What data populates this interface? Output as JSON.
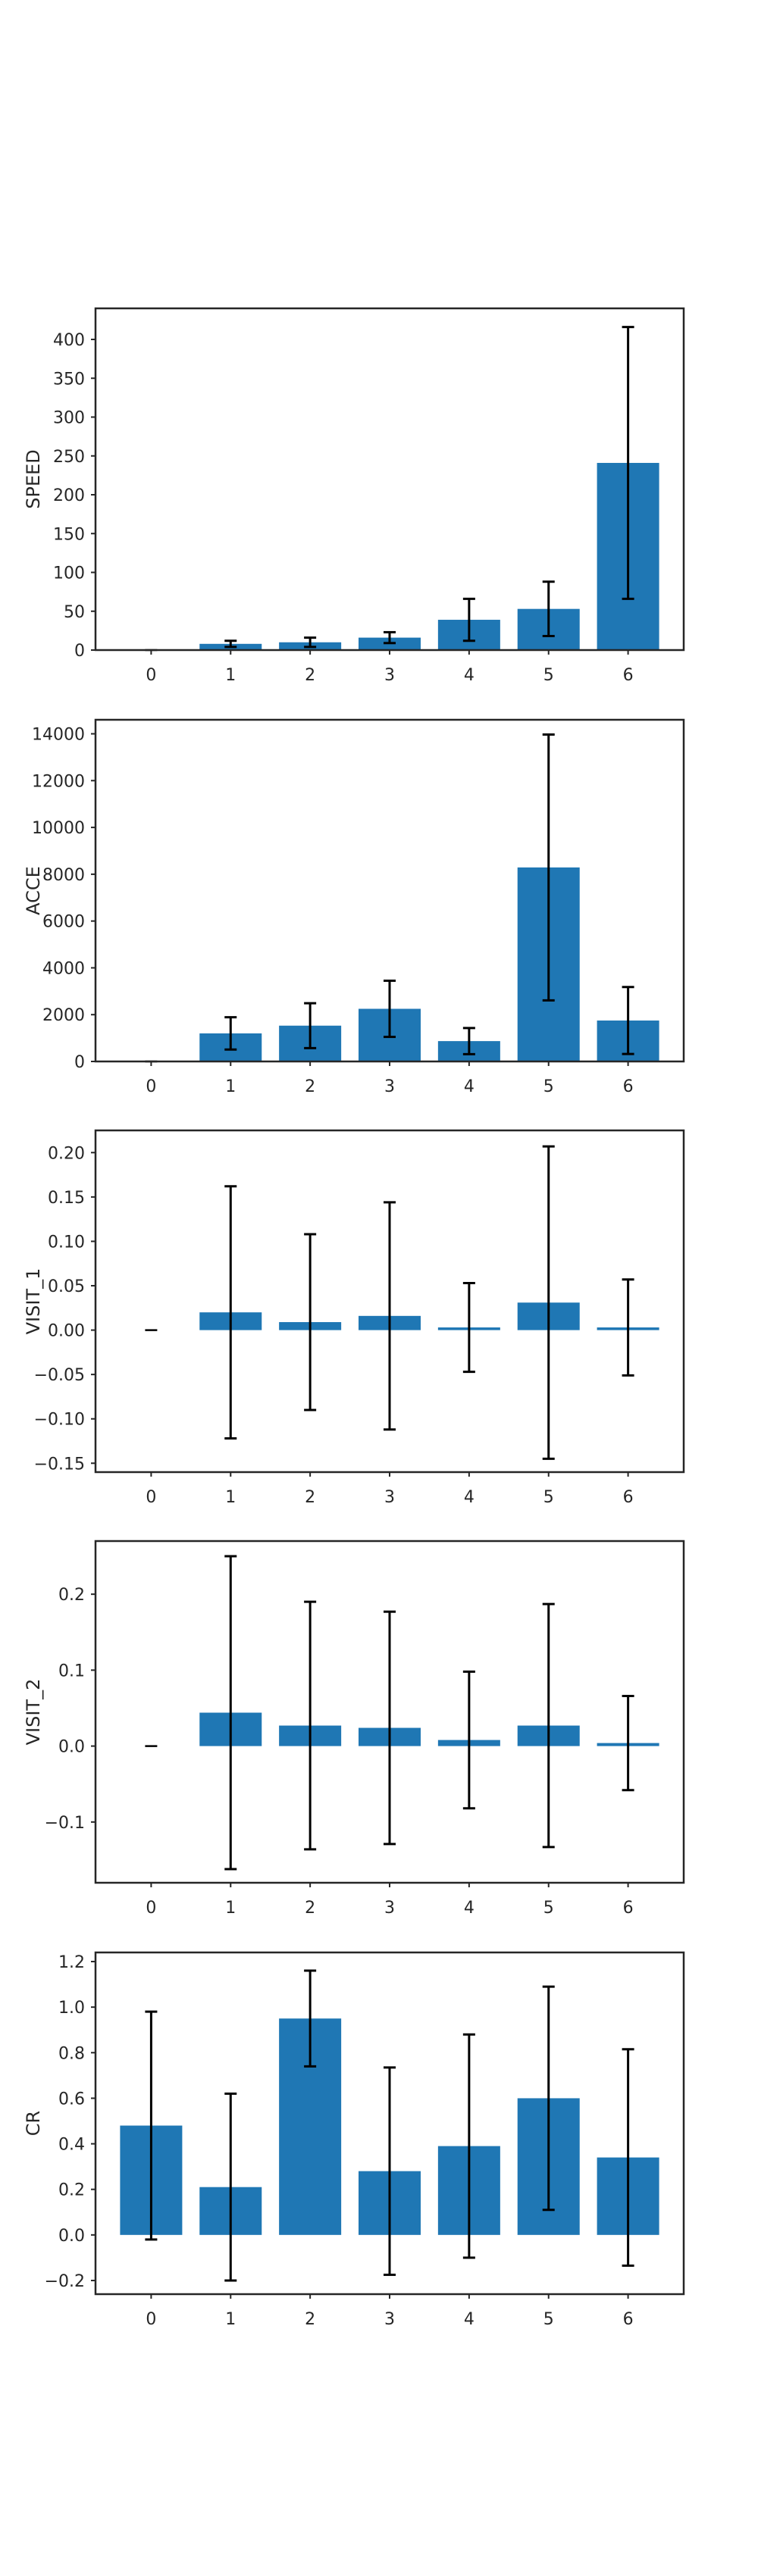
{
  "colors": {
    "bar": "#1f77b4",
    "error_bar": "#000000",
    "axes": "#262626",
    "background": "#ffffff"
  },
  "chart_data": [
    {
      "type": "bar",
      "categories": [
        "0",
        "1",
        "2",
        "3",
        "4",
        "5",
        "6"
      ],
      "values": [
        0,
        8,
        10,
        16,
        39,
        53,
        241
      ],
      "errors": [
        0,
        4,
        6,
        7,
        27,
        35,
        175
      ],
      "ylabel": "SPEED",
      "ylim": [
        0,
        440
      ],
      "yticks": [
        0,
        50,
        100,
        150,
        200,
        250,
        300,
        350,
        400
      ],
      "ytick_labels": [
        "0",
        "50",
        "100",
        "150",
        "200",
        "250",
        "300",
        "350",
        "400"
      ],
      "grid": false
    },
    {
      "type": "bar",
      "categories": [
        "0",
        "1",
        "2",
        "3",
        "4",
        "5",
        "6"
      ],
      "values": [
        0,
        1200,
        1530,
        2250,
        870,
        8290,
        1750
      ],
      "errors": [
        0,
        690,
        960,
        1200,
        560,
        5680,
        1430
      ],
      "ylabel": "ACCE",
      "ylim": [
        0,
        14600
      ],
      "yticks": [
        0,
        2000,
        4000,
        6000,
        8000,
        10000,
        12000,
        14000
      ],
      "ytick_labels": [
        "0",
        "2000",
        "4000",
        "6000",
        "8000",
        "10000",
        "12000",
        "14000"
      ],
      "grid": false
    },
    {
      "type": "bar",
      "categories": [
        "0",
        "1",
        "2",
        "3",
        "4",
        "5",
        "6"
      ],
      "values": [
        0.0,
        0.02,
        0.009,
        0.016,
        0.003,
        0.031,
        0.003
      ],
      "errors": [
        0.0,
        0.142,
        0.099,
        0.128,
        0.05,
        0.176,
        0.054
      ],
      "ylabel": "VISIT_1",
      "ylim": [
        -0.16,
        0.225
      ],
      "yticks": [
        -0.15,
        -0.1,
        -0.05,
        0.0,
        0.05,
        0.1,
        0.15,
        0.2
      ],
      "ytick_labels": [
        "−0.15",
        "−0.10",
        "−0.05",
        "0.00",
        "0.05",
        "0.10",
        "0.15",
        "0.20"
      ],
      "grid": false
    },
    {
      "type": "bar",
      "categories": [
        "0",
        "1",
        "2",
        "3",
        "4",
        "5",
        "6"
      ],
      "values": [
        0.0,
        0.044,
        0.027,
        0.024,
        0.008,
        0.027,
        0.004
      ],
      "errors": [
        0.0,
        0.206,
        0.163,
        0.153,
        0.09,
        0.16,
        0.062
      ],
      "ylabel": "VISIT_2",
      "ylim": [
        -0.18,
        0.27
      ],
      "yticks": [
        -0.1,
        0.0,
        0.1,
        0.2
      ],
      "ytick_labels": [
        "−0.1",
        "0.0",
        "0.1",
        "0.2"
      ],
      "grid": false
    },
    {
      "type": "bar",
      "categories": [
        "0",
        "1",
        "2",
        "3",
        "4",
        "5",
        "6"
      ],
      "values": [
        0.48,
        0.21,
        0.95,
        0.28,
        0.39,
        0.6,
        0.34
      ],
      "errors": [
        0.5,
        0.41,
        0.21,
        0.455,
        0.49,
        0.49,
        0.475
      ],
      "ylabel": "CR",
      "ylim": [
        -0.26,
        1.24
      ],
      "yticks": [
        -0.2,
        0.0,
        0.2,
        0.4,
        0.6,
        0.8,
        1.0,
        1.2
      ],
      "ytick_labels": [
        "−0.2",
        "0.0",
        "0.2",
        "0.4",
        "0.6",
        "0.8",
        "1.0",
        "1.2"
      ],
      "grid": false
    }
  ]
}
